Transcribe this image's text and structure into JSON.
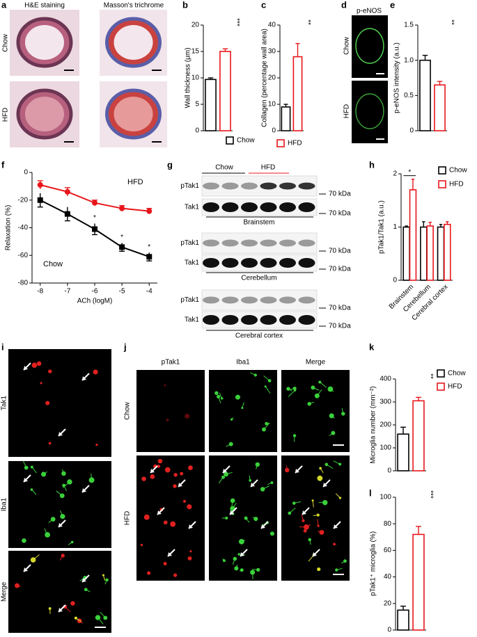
{
  "panel_labels": [
    "a",
    "b",
    "c",
    "d",
    "e",
    "f",
    "g",
    "h",
    "i",
    "j",
    "k",
    "l"
  ],
  "a": {
    "columns": [
      "H&E staining",
      "Masson's trichrome"
    ],
    "rows": [
      "Chow",
      "HFD"
    ]
  },
  "d": {
    "stain": "p-eNOS",
    "rows": [
      "Chow",
      "HFD"
    ]
  },
  "g": {
    "groups": [
      "Chow",
      "HFD"
    ],
    "marker": "70 kDa",
    "blots": [
      {
        "bands": [
          "pTak1",
          "Tak1"
        ],
        "region": "Brainstem"
      },
      {
        "bands": [
          "pTak1",
          "Tak1"
        ],
        "region": "Cerebellum"
      },
      {
        "bands": [
          "pTak1",
          "Tak1"
        ],
        "region": "Cerebral cortex"
      }
    ]
  },
  "i": {
    "rows": [
      "Tak1",
      "Iba1",
      "Merge"
    ]
  },
  "j": {
    "columns": [
      "pTak1",
      "Iba1",
      "Merge"
    ],
    "rows": [
      "Chow",
      "HFD"
    ]
  },
  "legends": [
    [
      {
        "name": "Chow",
        "color": "#000000"
      },
      {
        "name": "HFD",
        "color": "#e8161b"
      }
    ],
    [
      {
        "name": "Chow",
        "color": "#000000"
      },
      {
        "name": "HFD",
        "color": "#e8161b"
      }
    ]
  ],
  "chart_data": [
    {
      "type": "bar",
      "ylabel": "Wall thickness (μm)",
      "categories": [
        null,
        null
      ],
      "values": [
        9.7,
        15
      ],
      "errors": [
        0.3,
        0.5
      ],
      "colors": [
        "#000000",
        "#e8161b"
      ],
      "ylim": [
        0,
        20
      ],
      "yticks": [
        0,
        5,
        10,
        15,
        20
      ],
      "annotation": "***"
    },
    {
      "type": "bar",
      "ylabel": "Collagen (percentage wall area)",
      "categories": [
        null,
        null
      ],
      "values": [
        9,
        28
      ],
      "errors": [
        1,
        5
      ],
      "colors": [
        "#000000",
        "#e8161b"
      ],
      "ylim": [
        0,
        40
      ],
      "yticks": [
        0,
        10,
        20,
        30,
        40
      ],
      "annotation": "**"
    },
    {
      "type": "bar",
      "ylabel": "p-eNOS intensity (a.u.)",
      "categories": [
        null,
        null
      ],
      "values": [
        1.0,
        0.65
      ],
      "errors": [
        0.07,
        0.05
      ],
      "colors": [
        "#000000",
        "#e8161b"
      ],
      "ylim": [
        0,
        1.5
      ],
      "yticks": [
        0,
        0.5,
        {
          "value": 1,
          "label": "1.0"
        },
        1.5
      ],
      "annotation": "**"
    },
    {
      "type": "line",
      "xlabel": "ACh (logM)",
      "ylabel": "Relaxation (%)",
      "x": [
        -8,
        -7,
        -6,
        -5,
        -4
      ],
      "series": [
        {
          "name": "Chow",
          "color": "#000000",
          "marker": "square",
          "values": [
            -20,
            -30,
            -41,
            -54,
            -61
          ],
          "errors": [
            5,
            5,
            4,
            3,
            3
          ]
        },
        {
          "name": "HFD",
          "color": "#e8161b",
          "marker": "circle",
          "values": [
            -9,
            -14,
            -22,
            -26,
            -28
          ],
          "errors": [
            3,
            3,
            2,
            2,
            2
          ]
        }
      ],
      "significance": [
        null,
        null,
        "*",
        "*",
        "*"
      ],
      "xlim": [
        -8.3,
        -3.7
      ],
      "xticks": [
        -8,
        -7,
        -6,
        -5,
        -4
      ],
      "ylim": [
        -80,
        0
      ],
      "yticks": [
        -80,
        -60,
        -40,
        -20,
        0
      ]
    },
    {
      "type": "bar",
      "ylabel": "pTak1/Tak1 (a.u.)",
      "categories": [
        "Brainstem",
        "Cerebellum",
        "Cerebral cortex"
      ],
      "series": [
        {
          "name": "Chow",
          "color": "#000000",
          "values": [
            1,
            1,
            1
          ],
          "errors": [
            0.02,
            0.1,
            0.05
          ]
        },
        {
          "name": "HFD",
          "color": "#e8161b",
          "values": [
            1.7,
            1.02,
            1.05
          ],
          "errors": [
            0.2,
            0.07,
            0.05
          ]
        }
      ],
      "significance": [
        "*",
        null,
        null
      ],
      "ylim": [
        0,
        2
      ],
      "yticks": [
        0,
        1,
        2
      ]
    },
    {
      "type": "bar",
      "ylabel": "Microglia number (mm⁻²)",
      "categories": [
        null,
        null
      ],
      "values": [
        160,
        305
      ],
      "errors": [
        30,
        15
      ],
      "colors": [
        "#000000",
        "#e8161b"
      ],
      "ylim": [
        0,
        400
      ],
      "yticks": [
        0,
        100,
        200,
        300,
        400
      ],
      "annotation": "**"
    },
    {
      "type": "bar",
      "ylabel": "pTak1⁺ microglia (%)",
      "categories": [
        null,
        null
      ],
      "values": [
        15,
        72
      ],
      "errors": [
        3,
        6
      ],
      "colors": [
        "#000000",
        "#e8161b"
      ],
      "ylim": [
        0,
        100
      ],
      "yticks": [
        0,
        20,
        40,
        60,
        80,
        100
      ],
      "annotation": "***"
    }
  ]
}
